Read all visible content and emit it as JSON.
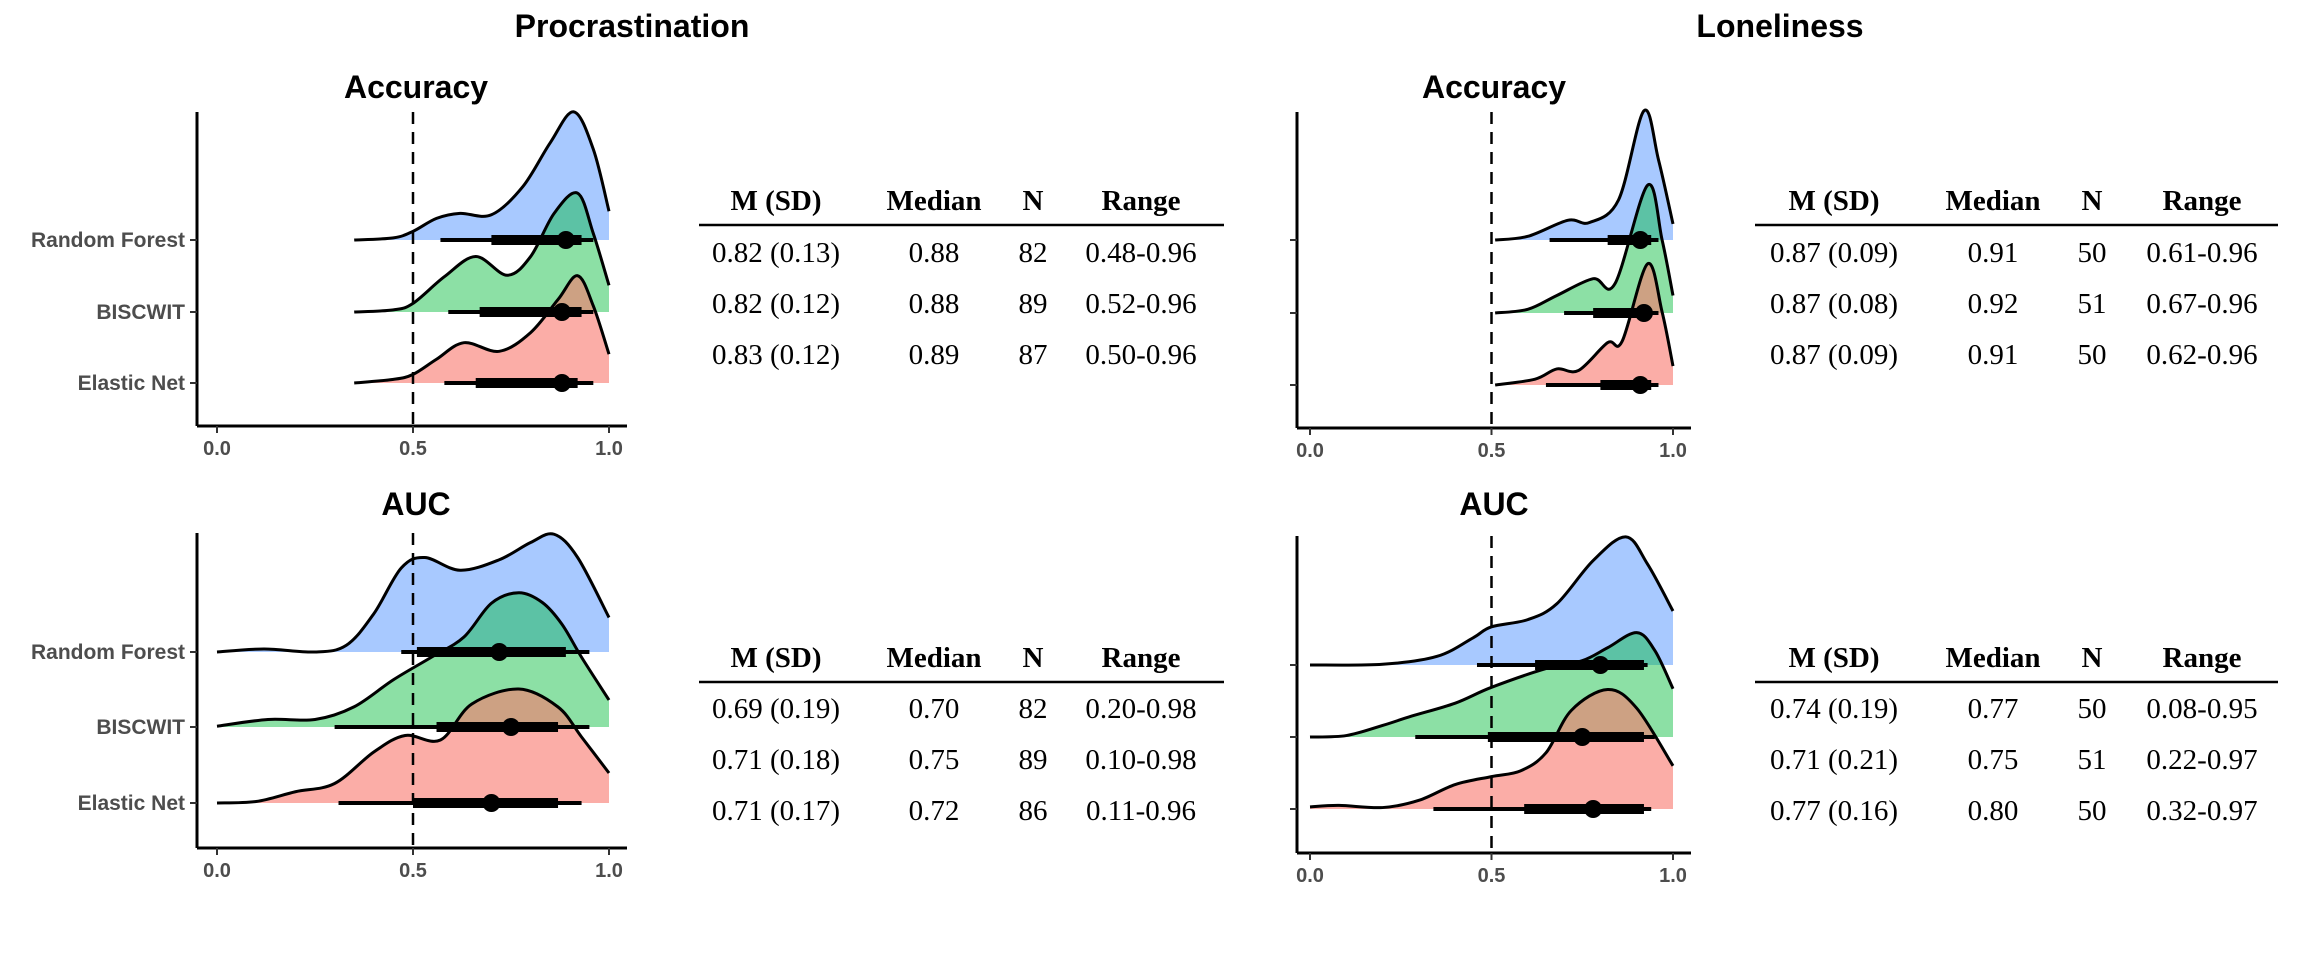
{
  "panels": [
    {
      "title": "Procrastination"
    },
    {
      "title": "Loneliness"
    }
  ],
  "colors": {
    "Random Forest": "rgba(97,156,255,0.55)",
    "BISCWIT": "rgba(0,186,56,0.45)",
    "Elastic Net": "rgba(248,118,109,0.6)"
  },
  "tables": [
    {
      "headers": [
        "M (SD)",
        "Median",
        "N",
        "Range"
      ],
      "rows": [
        [
          "0.82 (0.13)",
          "0.88",
          "82",
          "0.48-0.96"
        ],
        [
          "0.82 (0.12)",
          "0.88",
          "89",
          "0.52-0.96"
        ],
        [
          "0.83 (0.12)",
          "0.89",
          "87",
          "0.50-0.96"
        ]
      ]
    },
    {
      "headers": [
        "M (SD)",
        "Median",
        "N",
        "Range"
      ],
      "rows": [
        [
          "0.69 (0.19)",
          "0.70",
          "82",
          "0.20-0.98"
        ],
        [
          "0.71 (0.18)",
          "0.75",
          "89",
          "0.10-0.98"
        ],
        [
          "0.71 (0.17)",
          "0.72",
          "86",
          "0.11-0.96"
        ]
      ]
    },
    {
      "headers": [
        "M (SD)",
        "Median",
        "N",
        "Range"
      ],
      "rows": [
        [
          "0.87 (0.09)",
          "0.91",
          "50",
          "0.61-0.96"
        ],
        [
          "0.87 (0.08)",
          "0.92",
          "51",
          "0.67-0.96"
        ],
        [
          "0.87 (0.09)",
          "0.91",
          "50",
          "0.62-0.96"
        ]
      ]
    },
    {
      "headers": [
        "M (SD)",
        "Median",
        "N",
        "Range"
      ],
      "rows": [
        [
          "0.74 (0.19)",
          "0.77",
          "50",
          "0.08-0.95"
        ],
        [
          "0.71 (0.21)",
          "0.75",
          "51",
          "0.22-0.97"
        ],
        [
          "0.77 (0.16)",
          "0.80",
          "50",
          "0.32-0.97"
        ]
      ]
    }
  ],
  "chart_data": [
    {
      "type": "ridgeline",
      "panel": "Procrastination",
      "title": "Accuracy",
      "xlim": [
        0,
        1
      ],
      "xticks": [
        "0.0",
        "0.5",
        "1.0"
      ],
      "reference_line": 0.5,
      "grid": false,
      "categories": [
        "Random Forest",
        "BISCWIT",
        "Elastic Net"
      ],
      "series": [
        {
          "name": "Random Forest",
          "density": [
            [
              0.35,
              0
            ],
            [
              0.45,
              0.03
            ],
            [
              0.5,
              0.12
            ],
            [
              0.56,
              0.3
            ],
            [
              0.62,
              0.37
            ],
            [
              0.7,
              0.35
            ],
            [
              0.78,
              0.74
            ],
            [
              0.85,
              1.35
            ],
            [
              0.91,
              1.78
            ],
            [
              0.96,
              1.26
            ],
            [
              1.0,
              0.4
            ]
          ],
          "interval_outer": [
            0.57,
            0.96
          ],
          "interval_inner": [
            0.7,
            0.93
          ],
          "point": 0.89
        },
        {
          "name": "BISCWIT",
          "density": [
            [
              0.35,
              0
            ],
            [
              0.45,
              0.03
            ],
            [
              0.5,
              0.12
            ],
            [
              0.58,
              0.49
            ],
            [
              0.66,
              0.77
            ],
            [
              0.74,
              0.51
            ],
            [
              0.8,
              0.77
            ],
            [
              0.86,
              1.37
            ],
            [
              0.92,
              1.65
            ],
            [
              0.96,
              1.09
            ],
            [
              1.0,
              0.37
            ]
          ],
          "interval_outer": [
            0.59,
            0.96
          ],
          "interval_inner": [
            0.67,
            0.93
          ],
          "point": 0.88
        },
        {
          "name": "Elastic Net",
          "density": [
            [
              0.35,
              0
            ],
            [
              0.45,
              0.05
            ],
            [
              0.5,
              0.12
            ],
            [
              0.56,
              0.33
            ],
            [
              0.63,
              0.56
            ],
            [
              0.72,
              0.44
            ],
            [
              0.8,
              0.7
            ],
            [
              0.87,
              1.16
            ],
            [
              0.92,
              1.49
            ],
            [
              0.96,
              1.07
            ],
            [
              1.0,
              0.4
            ]
          ],
          "interval_outer": [
            0.58,
            0.96
          ],
          "interval_inner": [
            0.66,
            0.92
          ],
          "point": 0.88
        }
      ]
    },
    {
      "type": "ridgeline",
      "panel": "Procrastination",
      "title": "AUC",
      "xlim": [
        0,
        1
      ],
      "xticks": [
        "0.0",
        "0.5",
        "1.0"
      ],
      "reference_line": 0.5,
      "grid": false,
      "categories": [
        "Random Forest",
        "BISCWIT",
        "Elastic Net"
      ],
      "series": [
        {
          "name": "Random Forest",
          "density": [
            [
              0.0,
              0
            ],
            [
              0.12,
              0.04
            ],
            [
              0.25,
              0
            ],
            [
              0.33,
              0.09
            ],
            [
              0.4,
              0.51
            ],
            [
              0.47,
              1.12
            ],
            [
              0.53,
              1.26
            ],
            [
              0.62,
              1.09
            ],
            [
              0.72,
              1.23
            ],
            [
              0.8,
              1.46
            ],
            [
              0.86,
              1.57
            ],
            [
              0.92,
              1.26
            ],
            [
              1.0,
              0.46
            ]
          ],
          "interval_outer": [
            0.47,
            0.95
          ],
          "interval_inner": [
            0.51,
            0.89
          ],
          "point": 0.72
        },
        {
          "name": "BISCWIT",
          "density": [
            [
              0.0,
              0.01
            ],
            [
              0.13,
              0.1
            ],
            [
              0.25,
              0.1
            ],
            [
              0.35,
              0.27
            ],
            [
              0.45,
              0.63
            ],
            [
              0.55,
              0.94
            ],
            [
              0.63,
              1.2
            ],
            [
              0.7,
              1.65
            ],
            [
              0.77,
              1.79
            ],
            [
              0.83,
              1.66
            ],
            [
              0.88,
              1.37
            ],
            [
              0.93,
              0.93
            ],
            [
              1.0,
              0.36
            ]
          ],
          "interval_outer": [
            0.3,
            0.95
          ],
          "interval_inner": [
            0.56,
            0.87
          ],
          "point": 0.75
        },
        {
          "name": "Elastic Net",
          "density": [
            [
              0.0,
              0
            ],
            [
              0.1,
              0.02
            ],
            [
              0.2,
              0.15
            ],
            [
              0.3,
              0.26
            ],
            [
              0.4,
              0.68
            ],
            [
              0.48,
              0.9
            ],
            [
              0.57,
              0.84
            ],
            [
              0.65,
              1.32
            ],
            [
              0.77,
              1.52
            ],
            [
              0.87,
              1.28
            ],
            [
              0.93,
              0.88
            ],
            [
              1.0,
              0.4
            ]
          ],
          "interval_outer": [
            0.31,
            0.93
          ],
          "interval_inner": [
            0.5,
            0.87
          ],
          "point": 0.7
        }
      ]
    },
    {
      "type": "ridgeline",
      "panel": "Loneliness",
      "title": "Accuracy",
      "xlim": [
        0,
        1
      ],
      "xticks": [
        "0.0",
        "0.5",
        "1.0"
      ],
      "reference_line": 0.5,
      "grid": false,
      "categories": [
        "Random Forest",
        "BISCWIT",
        "Elastic Net"
      ],
      "series": [
        {
          "name": "Random Forest",
          "density": [
            [
              0.51,
              0
            ],
            [
              0.6,
              0.05
            ],
            [
              0.71,
              0.27
            ],
            [
              0.77,
              0.24
            ],
            [
              0.85,
              0.55
            ],
            [
              0.92,
              1.77
            ],
            [
              0.96,
              1.1
            ],
            [
              1.0,
              0.22
            ]
          ],
          "interval_outer": [
            0.66,
            0.96
          ],
          "interval_inner": [
            0.82,
            0.94
          ],
          "point": 0.91
        },
        {
          "name": "BISCWIT",
          "density": [
            [
              0.51,
              0
            ],
            [
              0.6,
              0.05
            ],
            [
              0.68,
              0.24
            ],
            [
              0.78,
              0.47
            ],
            [
              0.84,
              0.4
            ],
            [
              0.93,
              1.75
            ],
            [
              0.97,
              1.0
            ],
            [
              1.0,
              0.24
            ]
          ],
          "interval_outer": [
            0.7,
            0.96
          ],
          "interval_inner": [
            0.78,
            0.94
          ],
          "point": 0.92
        },
        {
          "name": "Elastic Net",
          "density": [
            [
              0.51,
              0
            ],
            [
              0.62,
              0.08
            ],
            [
              0.68,
              0.22
            ],
            [
              0.74,
              0.2
            ],
            [
              0.82,
              0.58
            ],
            [
              0.86,
              0.6
            ],
            [
              0.93,
              1.66
            ],
            [
              0.97,
              1.0
            ],
            [
              1.0,
              0.26
            ]
          ],
          "interval_outer": [
            0.65,
            0.96
          ],
          "interval_inner": [
            0.8,
            0.94
          ],
          "point": 0.91
        }
      ]
    },
    {
      "type": "ridgeline",
      "panel": "Loneliness",
      "title": "AUC",
      "xlim": [
        0,
        1
      ],
      "xticks": [
        "0.0",
        "0.5",
        "1.0"
      ],
      "reference_line": 0.5,
      "grid": false,
      "categories": [
        "Random Forest",
        "BISCWIT",
        "Elastic Net"
      ],
      "series": [
        {
          "name": "Random Forest",
          "density": [
            [
              0.0,
              0
            ],
            [
              0.2,
              0.01
            ],
            [
              0.35,
              0.12
            ],
            [
              0.45,
              0.38
            ],
            [
              0.5,
              0.53
            ],
            [
              0.6,
              0.63
            ],
            [
              0.68,
              0.85
            ],
            [
              0.78,
              1.45
            ],
            [
              0.87,
              1.78
            ],
            [
              0.93,
              1.4
            ],
            [
              1.0,
              0.75
            ]
          ],
          "interval_outer": [
            0.46,
            0.93
          ],
          "interval_inner": [
            0.62,
            0.92
          ],
          "point": 0.8
        },
        {
          "name": "BISCWIT",
          "density": [
            [
              0.0,
              0
            ],
            [
              0.1,
              0.02
            ],
            [
              0.2,
              0.16
            ],
            [
              0.28,
              0.29
            ],
            [
              0.4,
              0.47
            ],
            [
              0.5,
              0.69
            ],
            [
              0.65,
              0.95
            ],
            [
              0.75,
              1.06
            ],
            [
              0.82,
              1.24
            ],
            [
              0.9,
              1.45
            ],
            [
              0.95,
              1.2
            ],
            [
              1.0,
              0.67
            ]
          ],
          "interval_outer": [
            0.29,
            0.95
          ],
          "interval_inner": [
            0.49,
            0.92
          ],
          "point": 0.75
        },
        {
          "name": "Elastic Net",
          "density": [
            [
              0.0,
              0.03
            ],
            [
              0.08,
              0.05
            ],
            [
              0.2,
              0.02
            ],
            [
              0.3,
              0.12
            ],
            [
              0.4,
              0.34
            ],
            [
              0.5,
              0.45
            ],
            [
              0.58,
              0.53
            ],
            [
              0.65,
              0.78
            ],
            [
              0.72,
              1.37
            ],
            [
              0.82,
              1.66
            ],
            [
              0.9,
              1.4
            ],
            [
              1.0,
              0.6
            ]
          ],
          "interval_outer": [
            0.34,
            0.94
          ],
          "interval_inner": [
            0.59,
            0.92
          ],
          "point": 0.78
        }
      ]
    }
  ]
}
